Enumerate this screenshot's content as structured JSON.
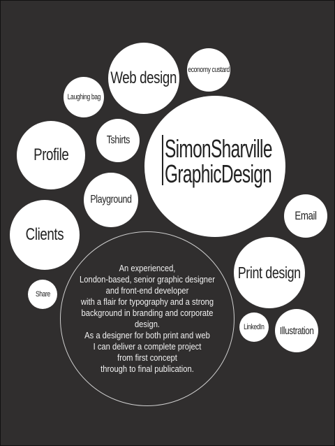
{
  "brand": {
    "line1": "SimonSharville",
    "line2": "GraphicDesign"
  },
  "nav": {
    "web_design": "Web design",
    "economy_custard": "economy custard",
    "laughing_bag": "Laughing bag",
    "tshirts": "Tshirts",
    "profile": "Profile",
    "playground": "Playground",
    "clients": "Clients",
    "email": "Email",
    "print_design": "Print design",
    "share": "Share",
    "linkedin": "LinkedIn",
    "illustration": "Illustration"
  },
  "intro": "An experienced,\nLondon-based, senior graphic designer\nand front-end developer\nwith a flair for typography and a strong\nbackground in branding and corporate design.\nAs a designer for both print and web\nI can deliver a complete project\nfrom first concept\nthrough to final publication.",
  "colors": {
    "background": "#302e2e",
    "bubble": "#ffffff",
    "text": "#222222"
  }
}
